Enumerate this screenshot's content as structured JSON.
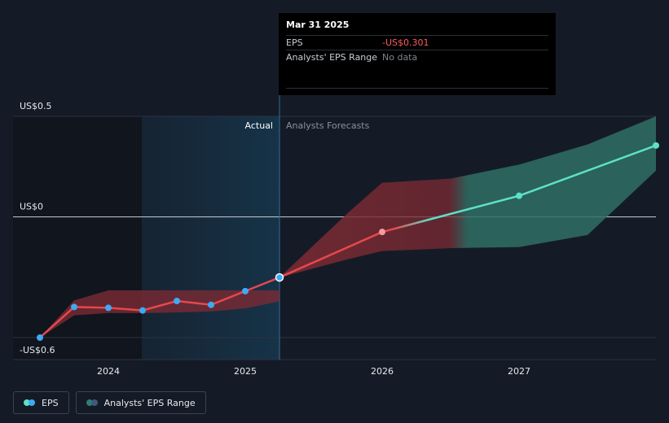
{
  "chart_data": {
    "type": "line",
    "title": "",
    "xlabel": "",
    "ylabel": "",
    "y_tick_labels": [
      {
        "value": 0.5,
        "label": "US$0.5"
      },
      {
        "value": 0,
        "label": "US$0"
      },
      {
        "value": -0.6,
        "label": "-US$0.6"
      }
    ],
    "ylim": [
      -0.6,
      0.5
    ],
    "x_tick_labels": [
      {
        "value": 2024,
        "label": "2024"
      },
      {
        "value": 2025,
        "label": "2025"
      },
      {
        "value": 2026,
        "label": "2026"
      },
      {
        "value": 2027,
        "label": "2027"
      }
    ],
    "xlim": [
      2023.4,
      2028.0
    ],
    "region_labels": {
      "actual": "Actual",
      "forecast": "Analysts Forecasts"
    },
    "actual_cutoff": 2025.25,
    "series": [
      {
        "name": "EPS",
        "kind": "actual",
        "color": "#e5484d",
        "points": [
          {
            "x": 2023.5,
            "y": -0.6
          },
          {
            "x": 2023.75,
            "y": -0.448
          },
          {
            "x": 2024.0,
            "y": -0.452
          },
          {
            "x": 2024.25,
            "y": -0.465
          },
          {
            "x": 2024.5,
            "y": -0.418
          },
          {
            "x": 2024.75,
            "y": -0.437
          },
          {
            "x": 2025.0,
            "y": -0.369
          },
          {
            "x": 2025.25,
            "y": -0.301
          }
        ]
      },
      {
        "name": "EPS",
        "kind": "forecast",
        "points": [
          {
            "x": 2025.25,
            "y": -0.301
          },
          {
            "x": 2026.0,
            "y": -0.075
          },
          {
            "x": 2027.0,
            "y": 0.105
          },
          {
            "x": 2028.0,
            "y": 0.355
          }
        ]
      }
    ],
    "range_actual": {
      "name": "Analysts' EPS Range",
      "x": [
        2023.5,
        2023.75,
        2024.0,
        2024.25,
        2024.5,
        2024.75,
        2025.0,
        2025.25
      ],
      "high": [
        -0.6,
        -0.415,
        -0.365,
        -0.365,
        -0.365,
        -0.365,
        -0.365,
        -0.365
      ],
      "low": [
        -0.6,
        -0.49,
        -0.478,
        -0.478,
        -0.475,
        -0.47,
        -0.455,
        -0.42
      ]
    },
    "range_forecast": {
      "name": "Analysts' EPS Range",
      "x": [
        2025.25,
        2025.75,
        2026.0,
        2026.5,
        2027.0,
        2027.5,
        2028.0
      ],
      "high": [
        -0.301,
        0.02,
        0.17,
        0.19,
        0.26,
        0.36,
        0.5
      ],
      "low": [
        -0.301,
        -0.21,
        -0.17,
        -0.155,
        -0.15,
        -0.09,
        0.23
      ]
    },
    "colors": {
      "actual_line": "#e5484d",
      "forecast_line": "#5ce1c8",
      "actual_band": "#7a2a33",
      "forecast_band": "#2f6f64",
      "highlight_band": "#163348",
      "background": "#151b26"
    },
    "grid": true
  },
  "tooltip": {
    "date": "Mar 31 2025",
    "eps_label": "EPS",
    "eps_value": "-US$0.301",
    "range_label": "Analysts' EPS Range",
    "range_value": "No data"
  },
  "legend": {
    "items": [
      {
        "label": "EPS",
        "colors": [
          "#5ce1c8",
          "#3fa9f5"
        ]
      },
      {
        "label": "Analysts' EPS Range",
        "colors": [
          "#2f7d70",
          "#3d5a7a"
        ]
      }
    ]
  }
}
